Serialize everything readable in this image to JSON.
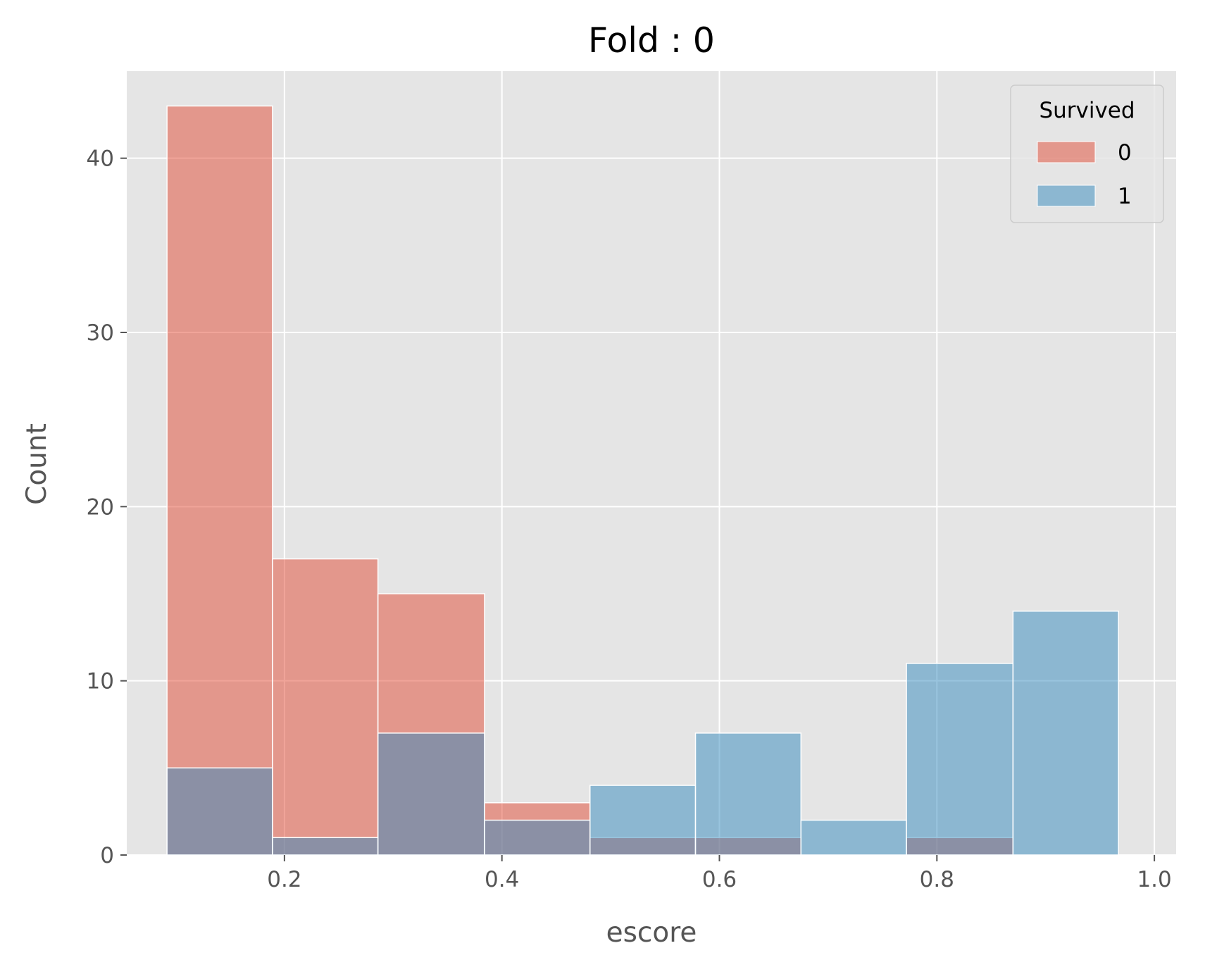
{
  "chart_data": {
    "type": "histogram",
    "title": "Fold : 0",
    "xlabel": "escore",
    "ylabel": "Count",
    "xlim": [
      0.055,
      1.02
    ],
    "ylim": [
      0,
      45
    ],
    "x_ticks": [
      0.2,
      0.4,
      0.6,
      0.8,
      1.0
    ],
    "x_tick_labels": [
      "0.2",
      "0.4",
      "0.6",
      "0.8",
      "1.0"
    ],
    "y_ticks": [
      0,
      10,
      20,
      30,
      40
    ],
    "y_tick_labels": [
      "0",
      "10",
      "20",
      "30",
      "40"
    ],
    "grid": true,
    "bin_edges": [
      0.092,
      0.189,
      0.286,
      0.384,
      0.481,
      0.578,
      0.675,
      0.772,
      0.87,
      0.967
    ],
    "series": [
      {
        "name": "0",
        "color": "#E24A33",
        "counts": [
          43,
          17,
          15,
          3,
          1,
          1,
          0,
          1,
          0
        ]
      },
      {
        "name": "1",
        "color": "#348ABD",
        "counts": [
          5,
          1,
          7,
          2,
          4,
          7,
          2,
          11,
          14
        ]
      }
    ],
    "legend": {
      "title": "Survived",
      "position": "top-right"
    }
  }
}
